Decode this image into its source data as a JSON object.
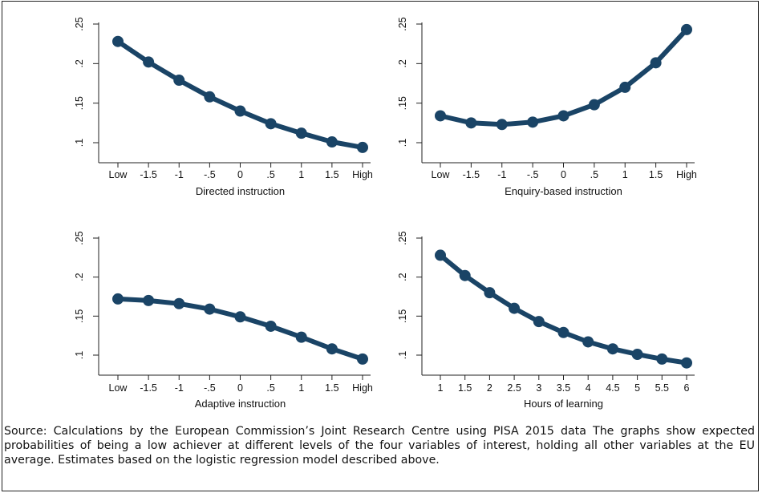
{
  "caption": "Source: Calculations by the European Commission’s Joint Research Centre using PISA 2015 data The graphs show expected probabilities of being a low achiever at different levels of the four variables of interest, holding all other variables at the EU average. Estimates based on the logistic regression model described above.",
  "colors": {
    "series": "#1a4466",
    "axis": "#222222",
    "background": "#ffffff"
  },
  "chart_data": [
    {
      "type": "line",
      "xlabel": "Directed instruction",
      "ylabel": "",
      "categories": [
        "Low",
        "-1.5",
        "-1",
        "-.5",
        "0",
        ".5",
        "1",
        "1.5",
        "High"
      ],
      "values": [
        0.228,
        0.202,
        0.179,
        0.158,
        0.14,
        0.124,
        0.112,
        0.101,
        0.094
      ],
      "ylim": [
        0.09,
        0.25
      ],
      "yticks": [
        0.1,
        0.15,
        0.2,
        0.25
      ],
      "ytick_labels": [
        ".1",
        ".15",
        ".2",
        ".25"
      ],
      "grid": false
    },
    {
      "type": "line",
      "xlabel": "Enquiry-based instruction",
      "ylabel": "",
      "categories": [
        "Low",
        "-1.5",
        "-1",
        "-.5",
        "0",
        ".5",
        "1",
        "1.5",
        "High"
      ],
      "values": [
        0.134,
        0.125,
        0.123,
        0.126,
        0.134,
        0.148,
        0.17,
        0.201,
        0.243
      ],
      "ylim": [
        0.09,
        0.25
      ],
      "yticks": [
        0.1,
        0.15,
        0.2,
        0.25
      ],
      "ytick_labels": [
        ".1",
        ".15",
        ".2",
        ".25"
      ],
      "grid": false
    },
    {
      "type": "line",
      "xlabel": "Adaptive instruction",
      "ylabel": "",
      "categories": [
        "Low",
        "-1.5",
        "-1",
        "-.5",
        "0",
        ".5",
        "1",
        "1.5",
        "High"
      ],
      "values": [
        0.172,
        0.17,
        0.166,
        0.159,
        0.149,
        0.137,
        0.123,
        0.108,
        0.095
      ],
      "ylim": [
        0.09,
        0.25
      ],
      "yticks": [
        0.1,
        0.15,
        0.2,
        0.25
      ],
      "ytick_labels": [
        ".1",
        ".15",
        ".2",
        ".25"
      ],
      "grid": false
    },
    {
      "type": "line",
      "xlabel": "Hours of learning",
      "ylabel": "",
      "categories": [
        "1",
        "1.5",
        "2",
        "2.5",
        "3",
        "3.5",
        "4",
        "4.5",
        "5",
        "5.5",
        "6"
      ],
      "values": [
        0.228,
        0.202,
        0.18,
        0.16,
        0.143,
        0.129,
        0.117,
        0.108,
        0.101,
        0.095,
        0.09
      ],
      "ylim": [
        0.09,
        0.25
      ],
      "yticks": [
        0.1,
        0.15,
        0.2,
        0.25
      ],
      "ytick_labels": [
        ".1",
        ".15",
        ".2",
        ".25"
      ],
      "grid": false
    }
  ]
}
